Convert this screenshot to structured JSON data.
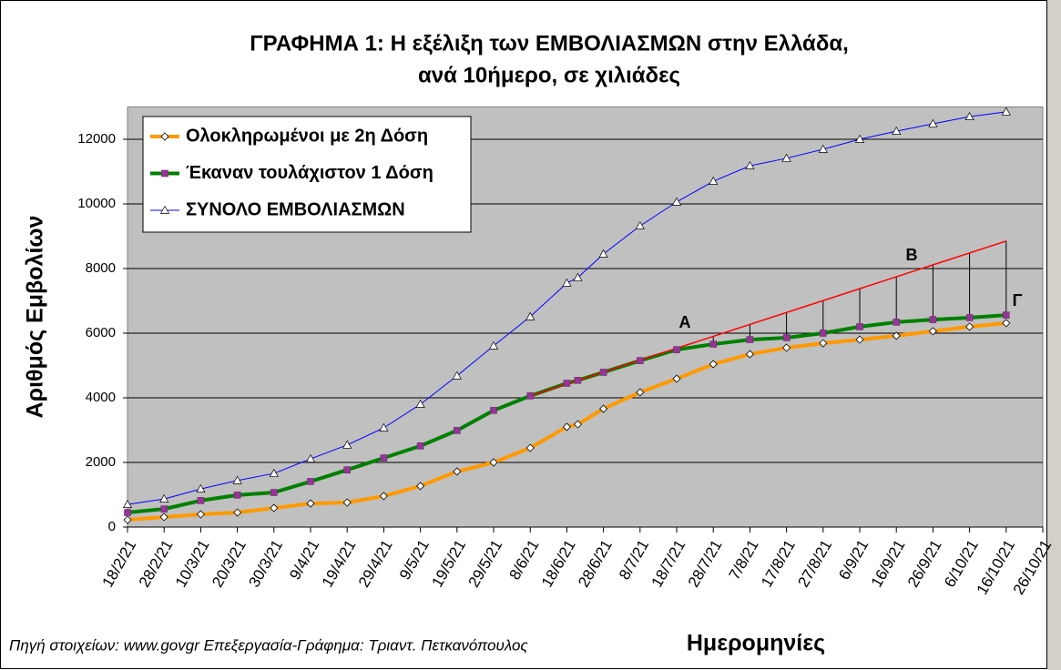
{
  "chart_data": {
    "type": "line",
    "title": [
      "ΓΡΑΦΗΜΑ 1:  Η εξέλιξη των ΕΜΒΟΛΙΑΣΜΩΝ στην Ελλάδα,",
      "ανά 10ήμερο, σε χιλιάδες"
    ],
    "y_label": "Αριθμός Εμβολίων",
    "x_label": "Ημερομηνίες",
    "source": "Πηγή στοιχείων: www.govgr  Επεξεργασία-Γράφημα: Τριαντ. Πετκανόπουλος",
    "x": [
      "18/2/21",
      "28/2/21",
      "10/3/21",
      "20/3/21",
      "30/3/21",
      "9/4/21",
      "19/4/21",
      "29/4/21",
      "9/5/21",
      "19/5/21",
      "29/5/21",
      "8/6/21",
      "18/6/21",
      "21/6/21",
      "28/6/21",
      "8/7/21",
      "18/7/21",
      "28/7/21",
      "7/8/21",
      "17/8/21",
      "27/8/21",
      "6/9/21",
      "16/9/21",
      "26/9/21",
      "6/10/21",
      "16/10/21"
    ],
    "series": [
      {
        "name": "Ολοκληρωμένοι με 2η Δόση",
        "color": "#ff9900",
        "marker": "diamond",
        "values": [
          225,
          310,
          395,
          450,
          590,
          730,
          760,
          960,
          1270,
          1720,
          2000,
          2450,
          3100,
          3180,
          3660,
          4170,
          4590,
          5040,
          5350,
          5550,
          5690,
          5800,
          5920,
          6060,
          6200,
          6310
        ]
      },
      {
        "name": "Έκαναν τουλάχιστον 1 Δόση",
        "color": "#008000",
        "marker": "square",
        "values": [
          450,
          560,
          820,
          990,
          1070,
          1410,
          1770,
          2140,
          2510,
          2990,
          3610,
          4060,
          4450,
          4540,
          4790,
          5150,
          5490,
          5660,
          5800,
          5860,
          6000,
          6200,
          6340,
          6420,
          6480,
          6560
        ]
      },
      {
        "name": "ΣΥΝΟΛΟ ΕΜΒΟΛΙΑΣΜΩΝ",
        "color": "#0000ff",
        "marker": "triangle",
        "values": [
          700,
          870,
          1180,
          1440,
          1660,
          2110,
          2540,
          3070,
          3800,
          4680,
          5610,
          6510,
          7550,
          7720,
          8450,
          9320,
          10060,
          10700,
          11180,
          11410,
          11690,
          12000,
          12250,
          12480,
          12700,
          12850
        ]
      }
    ],
    "trend": {
      "color": "#ff0000",
      "x": [
        "8/6/21",
        "16/10/21"
      ],
      "values": [
        4060,
        8850
      ]
    },
    "annotations": [
      "Α",
      "Β",
      "Γ"
    ],
    "xlim": [
      "18/2/21",
      "26/10/21"
    ],
    "xticks": [
      "18/2/21",
      "28/2/21",
      "10/3/21",
      "20/3/21",
      "30/3/21",
      "9/4/21",
      "19/4/21",
      "29/4/21",
      "9/5/21",
      "19/5/21",
      "29/5/21",
      "8/6/21",
      "18/6/21",
      "28/6/21",
      "8/7/21",
      "18/7/21",
      "28/7/21",
      "7/8/21",
      "17/8/21",
      "27/8/21",
      "6/9/21",
      "16/9/21",
      "26/9/21",
      "6/10/21",
      "16/10/21",
      "26/10/21"
    ],
    "ylim": [
      0,
      13000
    ],
    "yticks": [
      0,
      2000,
      4000,
      6000,
      8000,
      10000,
      12000
    ],
    "grid": true
  }
}
